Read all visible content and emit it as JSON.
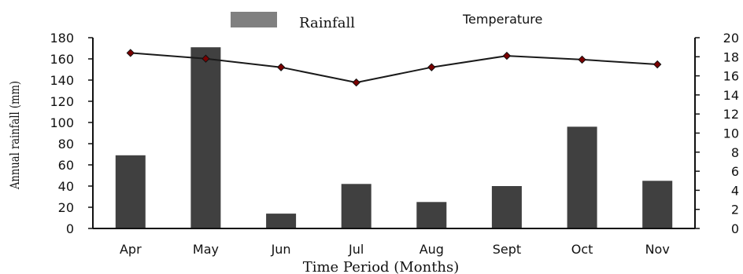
{
  "chart_data": {
    "type": "bar",
    "categories": [
      "Apr",
      "May",
      "Jun",
      "Jul",
      "Aug",
      "Sept",
      "Oct",
      "Nov"
    ],
    "series": [
      {
        "name": "Rainfall",
        "type": "bar",
        "axis": "left",
        "values": [
          69,
          171,
          14,
          42,
          25,
          40,
          96,
          45
        ],
        "color": "#404040"
      },
      {
        "name": "Temperature",
        "type": "line",
        "axis": "right",
        "values": [
          18.4,
          17.8,
          16.9,
          15.3,
          16.9,
          18.1,
          17.7,
          17.2
        ],
        "color": "#1a1a1a",
        "marker_color": "#7a0000"
      }
    ],
    "xlabel": "Time  Period (Months)",
    "ylabel": "Annual rainfall (mm)",
    "ylim": [
      0,
      180
    ],
    "y_ticks": [
      "0",
      "20",
      "40",
      "60",
      "80",
      "100",
      "120",
      "140",
      "160",
      "180"
    ],
    "y2lim": [
      0,
      20
    ],
    "y2_ticks": [
      "0",
      "2",
      "4",
      "6",
      "8",
      "10",
      "12",
      "14",
      "16",
      "18",
      "20"
    ],
    "legend_position": "top-center",
    "legend_swatch_color": "#808080",
    "grid": false
  }
}
